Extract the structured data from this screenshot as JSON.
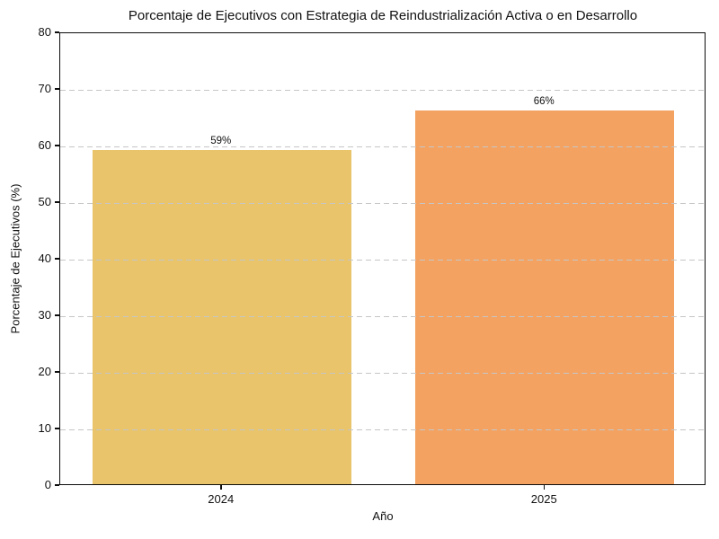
{
  "chart_data": {
    "type": "bar",
    "title": "Porcentaje de Ejecutivos con Estrategia de Reindustrialización Activa o en Desarrollo",
    "xlabel": "Año",
    "ylabel": "Porcentaje de Ejecutivos (%)",
    "categories": [
      "2024",
      "2025"
    ],
    "values": [
      59,
      66
    ],
    "value_labels": [
      "59%",
      "66%"
    ],
    "bar_colors": [
      "#E9C46A",
      "#F4A261"
    ],
    "ylim": [
      0,
      80
    ],
    "yticks": [
      0,
      10,
      20,
      30,
      40,
      50,
      60,
      70,
      80
    ],
    "grid": "horizontal-dashed",
    "grid_color": "#c6c6c6",
    "legend_position": "none",
    "bar_width_fraction": 0.8
  }
}
